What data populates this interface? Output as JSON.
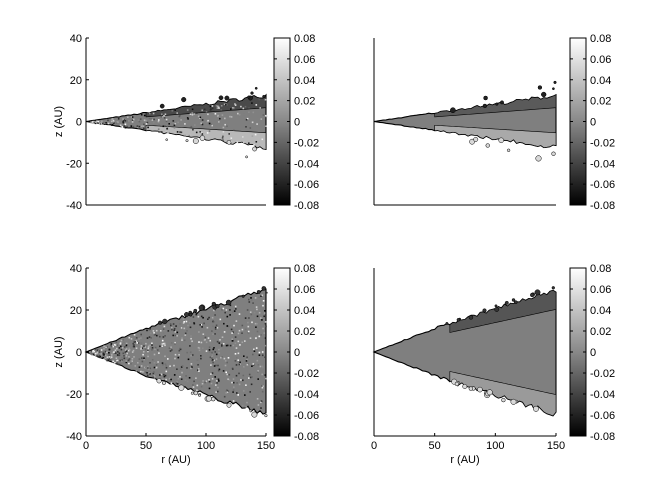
{
  "figure": {
    "colorbar_ticks": [
      "0.08",
      "0.06",
      "0.04",
      "0.02",
      "0",
      "-0.02",
      "-0.04",
      "-0.06",
      "-0.08"
    ],
    "colorbar_range": [
      -0.08,
      0.08
    ]
  },
  "chart_data": [
    {
      "type": "heatmap",
      "panel": "top-left",
      "xlabel": "",
      "ylabel": "z (AU)",
      "xlim": [
        0,
        150
      ],
      "ylim": [
        -40,
        40
      ],
      "yticks": [
        40,
        20,
        0,
        -20,
        -40
      ],
      "xticks": [],
      "wedge_half_height": [
        [
          0,
          0
        ],
        [
          50,
          4
        ],
        [
          100,
          8
        ],
        [
          150,
          12
        ]
      ],
      "colorbar": {
        "min": -0.08,
        "max": 0.08,
        "ticks": [
          0.08,
          0.06,
          0.04,
          0.02,
          0,
          -0.02,
          -0.04,
          -0.06,
          -0.08
        ]
      }
    },
    {
      "type": "heatmap",
      "panel": "top-right",
      "xlabel": "",
      "ylabel": "",
      "xlim": [
        0,
        150
      ],
      "ylim": [
        -40,
        40
      ],
      "yticks": [],
      "xticks": [],
      "wedge_half_height": [
        [
          0,
          0
        ],
        [
          50,
          4
        ],
        [
          100,
          8
        ],
        [
          150,
          12
        ]
      ],
      "colorbar": {
        "min": -0.08,
        "max": 0.08,
        "ticks": [
          0.08,
          0.06,
          0.04,
          0.02,
          0,
          -0.02,
          -0.04,
          -0.06,
          -0.08
        ]
      }
    },
    {
      "type": "heatmap",
      "panel": "bottom-left",
      "xlabel": "r (AU)",
      "ylabel": "z (AU)",
      "xlim": [
        0,
        150
      ],
      "ylim": [
        -40,
        40
      ],
      "yticks": [
        40,
        20,
        0,
        -20,
        -40
      ],
      "xticks": [
        0,
        50,
        100,
        150
      ],
      "wedge_half_height": [
        [
          0,
          0
        ],
        [
          50,
          11
        ],
        [
          100,
          20
        ],
        [
          150,
          29
        ]
      ],
      "colorbar": {
        "min": -0.08,
        "max": 0.08,
        "ticks": [
          0.08,
          0.06,
          0.04,
          0.02,
          0,
          -0.02,
          -0.04,
          -0.06,
          -0.08
        ]
      }
    },
    {
      "type": "heatmap",
      "panel": "bottom-right",
      "xlabel": "r (AU)",
      "ylabel": "",
      "xlim": [
        0,
        150
      ],
      "ylim": [
        -40,
        40
      ],
      "yticks": [],
      "xticks": [
        0,
        50,
        100,
        150
      ],
      "wedge_half_height": [
        [
          0,
          0
        ],
        [
          50,
          11
        ],
        [
          100,
          20
        ],
        [
          150,
          29
        ]
      ],
      "colorbar": {
        "min": -0.08,
        "max": 0.08,
        "ticks": [
          0.08,
          0.06,
          0.04,
          0.02,
          0,
          -0.02,
          -0.04,
          -0.06,
          -0.08
        ]
      }
    }
  ]
}
